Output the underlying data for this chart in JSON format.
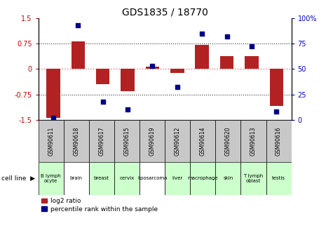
{
  "title": "GDS1835 / 18770",
  "gsm_labels": [
    "GSM90611",
    "GSM90618",
    "GSM90617",
    "GSM90615",
    "GSM90619",
    "GSM90612",
    "GSM90614",
    "GSM90620",
    "GSM90613",
    "GSM90616"
  ],
  "cell_labels": [
    "B lymph\nocyte",
    "brain",
    "breast",
    "cervix",
    "liposarcoma",
    "liver",
    "macrophage",
    "skin",
    "T lymph\noblast",
    "testis"
  ],
  "cell_bg_colors": [
    "#ccffcc",
    "#ffffff",
    "#ccffcc",
    "#ccffcc",
    "#ffffff",
    "#ccffcc",
    "#ccffcc",
    "#ccffcc",
    "#ccffcc",
    "#ccffcc"
  ],
  "log2_ratio": [
    -1.45,
    0.82,
    -0.45,
    -0.65,
    0.07,
    -0.12,
    0.72,
    0.38,
    0.38,
    -1.1
  ],
  "percentile_rank": [
    2,
    93,
    18,
    10,
    53,
    32,
    85,
    82,
    72,
    8
  ],
  "ylim": [
    -1.5,
    1.5
  ],
  "right_ylim": [
    0,
    100
  ],
  "bar_color": "#b22222",
  "dot_color": "#00008b",
  "zero_line_color": "#ff6666",
  "grid_color": "#333333",
  "bg_color": "#ffffff",
  "title_fontsize": 10,
  "tick_fontsize": 7,
  "label_fontsize": 7
}
